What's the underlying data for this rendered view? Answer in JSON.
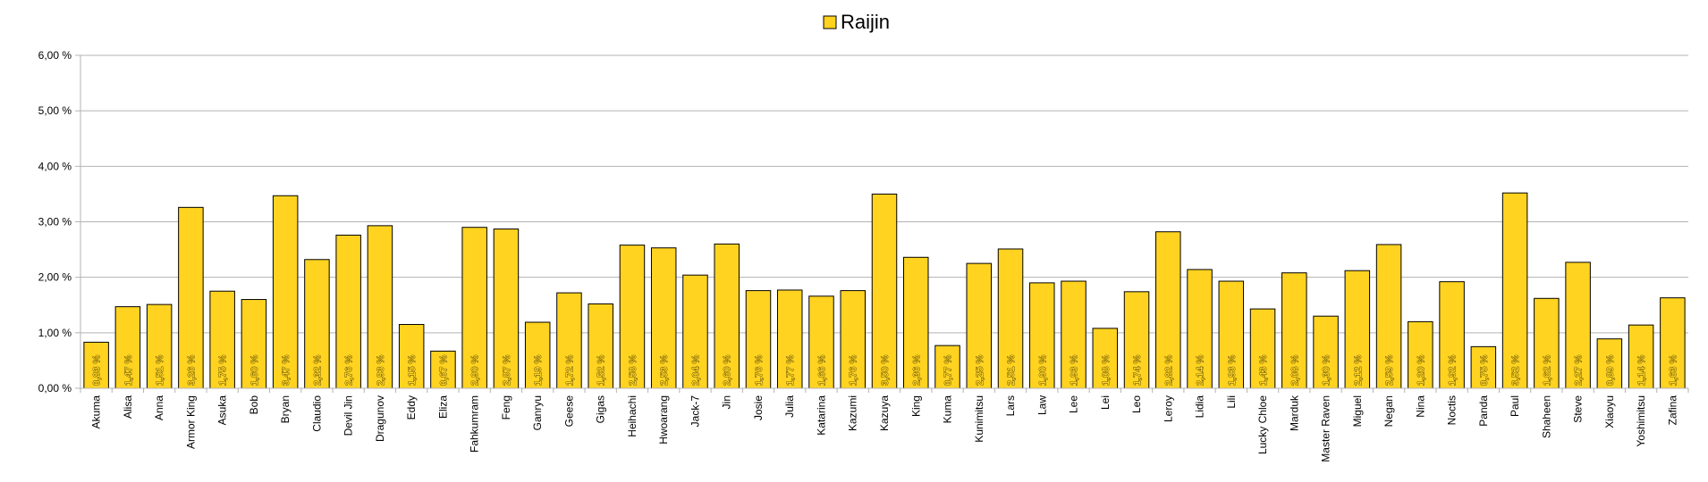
{
  "chart_data": {
    "type": "bar",
    "title": "",
    "xlabel": "",
    "ylabel": "",
    "legend": {
      "position": "top-center",
      "entries": [
        "Raijin"
      ]
    },
    "ylim": [
      0,
      6
    ],
    "yticks": [
      "0,00 %",
      "1,00 %",
      "2,00 %",
      "3,00 %",
      "4,00 %",
      "5,00 %",
      "6,00 %"
    ],
    "grid": true,
    "categories": [
      "Akuma",
      "Alisa",
      "Anna",
      "Armor King",
      "Asuka",
      "Bob",
      "Bryan",
      "Claudio",
      "Devil Jin",
      "Dragunov",
      "Eddy",
      "Eliza",
      "Fahkumram",
      "Feng",
      "Ganryu",
      "Geese",
      "Gigas",
      "Heihachi",
      "Hwoarang",
      "Jack-7",
      "Jin",
      "Josie",
      "Julia",
      "Katarina",
      "Kazumi",
      "Kazuya",
      "King",
      "Kuma",
      "Kunimitsu",
      "Lars",
      "Law",
      "Lee",
      "Lei",
      "Leo",
      "Leroy",
      "Lidia",
      "Lili",
      "Lucky Chloe",
      "Marduk",
      "Master Raven",
      "Miguel",
      "Negan",
      "Nina",
      "Noctis",
      "Panda",
      "Paul",
      "Shaheen",
      "Steve",
      "Xiaoyu",
      "Yoshimitsu",
      "Zafina"
    ],
    "series": [
      {
        "name": "Raijin",
        "color": "#ffd320",
        "values": [
          0.83,
          1.47,
          1.51,
          3.26,
          1.75,
          1.6,
          3.47,
          2.32,
          2.76,
          2.93,
          1.15,
          0.67,
          2.9,
          2.87,
          1.19,
          1.72,
          1.52,
          2.58,
          2.53,
          2.04,
          2.6,
          1.76,
          1.77,
          1.66,
          1.76,
          3.5,
          2.36,
          0.77,
          2.25,
          2.51,
          1.9,
          1.93,
          1.08,
          1.74,
          2.82,
          2.14,
          1.93,
          1.43,
          2.08,
          1.3,
          2.12,
          2.59,
          1.2,
          1.92,
          0.75,
          3.52,
          1.62,
          2.27,
          0.89,
          1.14,
          1.63
        ],
        "labels": [
          "0,83 %",
          "1,47 %",
          "1,51 %",
          "3,26 %",
          "1,75 %",
          "1,60 %",
          "3,47 %",
          "2,32 %",
          "2,76 %",
          "2,93 %",
          "1,15 %",
          "0,67 %",
          "2,90 %",
          "2,87 %",
          "1,19 %",
          "1,72 %",
          "1,52 %",
          "2,58 %",
          "2,53 %",
          "2,04 %",
          "2,60 %",
          "1,76 %",
          "1,77 %",
          "1,66 %",
          "1,76 %",
          "3,50 %",
          "2,36 %",
          "0,77 %",
          "2,25 %",
          "2,51 %",
          "1,90 %",
          "1,93 %",
          "1,08 %",
          "1,74 %",
          "2,82 %",
          "2,14 %",
          "1,93 %",
          "1,43 %",
          "2,08 %",
          "1,30 %",
          "2,12 %",
          "2,59 %",
          "1,20 %",
          "1,92 %",
          "0,75 %",
          "3,52 %",
          "1,62 %",
          "2,27 %",
          "0,89 %",
          "1,14 %",
          "1,63 %"
        ]
      }
    ]
  }
}
